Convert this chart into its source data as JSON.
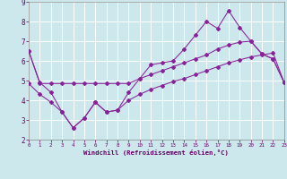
{
  "xlabel": "Windchill (Refroidissement éolien,°C)",
  "bg_color": "#cde8ec",
  "line_color": "#882299",
  "xlim": [
    0,
    23
  ],
  "ylim": [
    2,
    9
  ],
  "xticks": [
    0,
    1,
    2,
    3,
    4,
    5,
    6,
    7,
    8,
    9,
    10,
    11,
    12,
    13,
    14,
    15,
    16,
    17,
    18,
    19,
    20,
    21,
    22,
    23
  ],
  "yticks": [
    2,
    3,
    4,
    5,
    6,
    7,
    8,
    9
  ],
  "line1_x": [
    0,
    1,
    2,
    3,
    4,
    5,
    6,
    7,
    8,
    9,
    10,
    11,
    12,
    13,
    14,
    15,
    16,
    17,
    18,
    19,
    20,
    21,
    22,
    23
  ],
  "line1_y": [
    6.5,
    4.9,
    4.4,
    3.4,
    2.6,
    3.1,
    3.9,
    3.4,
    3.5,
    4.4,
    5.1,
    5.8,
    5.9,
    6.0,
    6.6,
    7.3,
    8.0,
    7.65,
    8.55,
    7.7,
    7.0,
    6.35,
    6.1,
    4.9
  ],
  "line2_x": [
    0,
    1,
    2,
    3,
    4,
    5,
    6,
    7,
    8,
    9,
    10,
    11,
    12,
    13,
    14,
    15,
    16,
    17,
    18,
    19,
    20,
    21,
    22,
    23
  ],
  "line2_y": [
    6.5,
    4.85,
    4.85,
    4.85,
    4.85,
    4.85,
    4.85,
    4.85,
    4.85,
    4.85,
    5.1,
    5.3,
    5.5,
    5.7,
    5.9,
    6.1,
    6.3,
    6.6,
    6.8,
    6.95,
    7.0,
    6.35,
    6.1,
    4.9
  ],
  "line3_x": [
    0,
    1,
    2,
    3,
    4,
    5,
    6,
    7,
    8,
    9,
    10,
    11,
    12,
    13,
    14,
    15,
    16,
    17,
    18,
    19,
    20,
    21,
    22,
    23
  ],
  "line3_y": [
    4.85,
    4.3,
    3.9,
    3.4,
    2.6,
    3.1,
    3.9,
    3.4,
    3.5,
    4.0,
    4.3,
    4.55,
    4.75,
    4.95,
    5.1,
    5.3,
    5.5,
    5.7,
    5.9,
    6.05,
    6.2,
    6.3,
    6.4,
    4.9
  ]
}
